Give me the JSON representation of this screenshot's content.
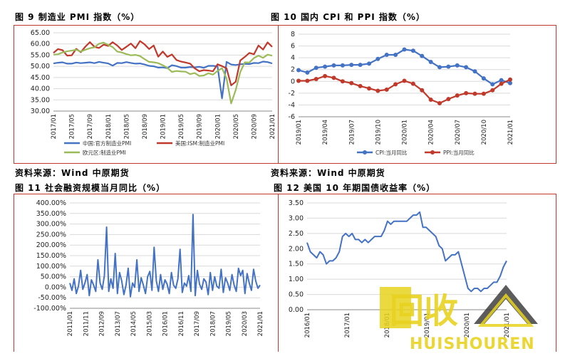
{
  "captions": {
    "c1": "图 9 制造业 PMI 指数（%）",
    "c2": "图 10 国内 CPI 和 PPI 指数（%）",
    "c3": "图 11 社会融资规模当月同比（%）",
    "c4": "图 12 美国 10 年期国债收益率（%）"
  },
  "sources": {
    "s1": "资料来源：Wind 中原期货",
    "s2": "资料来源：Wind 中原期货"
  },
  "watermark": {
    "text_main": "回收",
    "text_sub": "HUISHOUREN"
  },
  "colors": {
    "blue": "#4472c4",
    "red": "#c0392b",
    "green": "#9bbb59",
    "frame": "#c0392b",
    "grid": "#d9d9d9",
    "wm_yellow": "#e8d21f"
  },
  "chart_data": [
    {
      "type": "line",
      "ylim": [
        30,
        65
      ],
      "yticks": [
        "65.00",
        "60.00",
        "55.00",
        "50.00",
        "45.00",
        "40.00",
        "35.00",
        "30.00"
      ],
      "xticks": [
        "2017/01",
        "2017/05",
        "2017/09",
        "2018/01",
        "2018/05",
        "2018/09",
        "2019/01",
        "2019/05",
        "2019/09",
        "2020/01",
        "2020/05",
        "2020/09",
        "2021/01"
      ],
      "series": [
        {
          "name": "中国:官方制造业PMI",
          "color": "blue",
          "values": [
            51.3,
            51.6,
            51.8,
            51.2,
            51.2,
            51.7,
            51.4,
            51.6,
            51.8,
            51.4,
            52.0,
            51.6,
            51.3,
            50.3,
            51.5,
            51.4,
            51.9,
            51.5,
            51.2,
            51.3,
            50.8,
            50.2,
            50.0,
            49.4,
            49.5,
            49.2,
            50.5,
            50.1,
            49.4,
            49.4,
            49.7,
            49.5,
            49.8,
            49.3,
            50.2,
            50.2,
            50.0,
            35.7,
            52.0,
            50.8,
            50.6,
            50.9,
            51.1,
            51.0,
            51.5,
            51.4,
            52.1,
            51.9,
            51.3
          ]
        },
        {
          "name": "美国:ISM:制造业PMI",
          "color": "red",
          "values": [
            56.0,
            57.7,
            57.2,
            54.8,
            54.9,
            57.8,
            56.3,
            58.8,
            60.8,
            58.7,
            58.2,
            59.7,
            59.1,
            60.8,
            59.3,
            57.3,
            58.7,
            60.2,
            58.1,
            61.3,
            59.8,
            57.7,
            59.3,
            54.3,
            56.6,
            54.2,
            55.3,
            52.8,
            52.1,
            51.7,
            51.2,
            49.1,
            47.8,
            48.3,
            48.1,
            47.8,
            50.9,
            50.1,
            49.1,
            41.5,
            43.1,
            52.6,
            54.2,
            56.0,
            55.4,
            59.3,
            57.5,
            60.7,
            58.7
          ]
        },
        {
          "name": "欧元区:制造业PMI",
          "color": "green",
          "values": [
            55.2,
            55.4,
            56.2,
            56.7,
            57.0,
            57.4,
            56.6,
            57.4,
            58.1,
            58.5,
            60.1,
            60.6,
            59.6,
            58.6,
            56.6,
            56.2,
            55.5,
            54.9,
            55.1,
            54.6,
            53.2,
            52.0,
            51.8,
            51.4,
            50.5,
            49.3,
            47.5,
            47.9,
            47.7,
            47.6,
            46.5,
            47.0,
            45.7,
            45.9,
            46.9,
            46.3,
            47.9,
            49.2,
            44.5,
            33.4,
            39.4,
            47.4,
            51.8,
            51.7,
            53.7,
            54.8,
            53.8,
            55.2,
            54.8
          ]
        }
      ]
    },
    {
      "type": "line",
      "ylim": [
        -6,
        8
      ],
      "yticks": [
        "8",
        "6",
        "4",
        "2",
        "0",
        "-2",
        "-4",
        "-6"
      ],
      "xticks": [
        "2019/01",
        "2019/04",
        "2019/07",
        "2019/10",
        "2020/01",
        "2020/04",
        "2020/07",
        "2020/10",
        "2021/01"
      ],
      "series": [
        {
          "name": "CPI:当月同比",
          "color": "blue",
          "values": [
            1.9,
            1.5,
            2.3,
            2.5,
            2.7,
            2.7,
            2.8,
            2.8,
            3.0,
            3.8,
            4.5,
            4.5,
            5.4,
            5.2,
            4.3,
            3.3,
            2.4,
            2.5,
            2.7,
            2.4,
            1.7,
            0.5,
            -0.5,
            0.2,
            -0.3
          ]
        },
        {
          "name": "PPI:当月同比",
          "color": "red",
          "values": [
            0.1,
            0.1,
            0.4,
            0.9,
            0.6,
            0.0,
            -0.3,
            -0.8,
            -1.2,
            -1.6,
            -1.4,
            -0.5,
            0.1,
            -0.4,
            -1.5,
            -3.1,
            -3.7,
            -3.0,
            -2.4,
            -2.0,
            -2.1,
            -2.1,
            -1.5,
            -0.4,
            0.3
          ]
        }
      ]
    },
    {
      "type": "line",
      "ylim": [
        -100,
        400
      ],
      "yticks": [
        "400.00%",
        "350.00%",
        "300.00%",
        "250.00%",
        "200.00%",
        "150.00%",
        "100.00%",
        "50.00%",
        "0.00%",
        "-50.00%",
        "-100.00%"
      ],
      "xticks": [
        "2011/01",
        "2011/11",
        "2012/09",
        "2013/07",
        "2014/05",
        "2015/03",
        "2016/01",
        "2016/11",
        "2017/09",
        "2018/07",
        "2019/05",
        "2020/03",
        "2021/01"
      ],
      "series": [
        {
          "name": "社会融资规模当月同比",
          "color": "blue",
          "values": [
            20,
            -15,
            40,
            -30,
            5,
            80,
            -10,
            20,
            60,
            -40,
            35,
            10,
            -20,
            130,
            20,
            -10,
            55,
            285,
            -20,
            40,
            -5,
            160,
            -30,
            70,
            30,
            -35,
            10,
            90,
            -45,
            20,
            0,
            130,
            -20,
            45,
            10,
            -30,
            50,
            75,
            -15,
            190,
            30,
            -20,
            60,
            -10,
            35,
            15,
            -30,
            70,
            10,
            -5,
            40,
            180,
            -25,
            20,
            5,
            55,
            -20,
            345,
            -40,
            80,
            15,
            -10,
            40,
            25,
            -35,
            70,
            -15,
            50,
            5,
            -5,
            85,
            -25,
            45,
            20,
            -15,
            60,
            10,
            -20,
            90,
            55,
            80,
            -30,
            65,
            20,
            -15,
            85,
            30,
            -5,
            10
          ]
        }
      ]
    },
    {
      "type": "line",
      "ylim": [
        0,
        3.5
      ],
      "yticks": [
        "3.50",
        "3.00",
        "2.50",
        "2.00",
        "1.50",
        "1.00",
        "0.50",
        "0.00"
      ],
      "xticks": [
        "2016/01",
        "2017/01",
        "2018/01",
        "2019/01",
        "2020/01",
        "2021/01"
      ],
      "series": [
        {
          "name": "美国10年期国债收益率",
          "color": "blue",
          "values": [
            2.2,
            1.9,
            1.8,
            1.7,
            1.9,
            1.8,
            1.5,
            1.6,
            1.6,
            1.7,
            1.9,
            2.4,
            2.5,
            2.4,
            2.5,
            2.3,
            2.3,
            2.2,
            2.3,
            2.2,
            2.3,
            2.4,
            2.4,
            2.4,
            2.6,
            2.9,
            2.8,
            2.9,
            2.9,
            2.9,
            2.9,
            2.9,
            3.0,
            3.1,
            3.1,
            3.2,
            2.7,
            2.7,
            2.6,
            2.5,
            2.4,
            2.1,
            2.0,
            1.6,
            1.7,
            1.8,
            1.8,
            1.9,
            1.5,
            1.1,
            0.7,
            0.6,
            0.7,
            0.7,
            0.6,
            0.7,
            0.7,
            0.8,
            0.9,
            0.9,
            1.1,
            1.4,
            1.6
          ]
        }
      ]
    }
  ]
}
